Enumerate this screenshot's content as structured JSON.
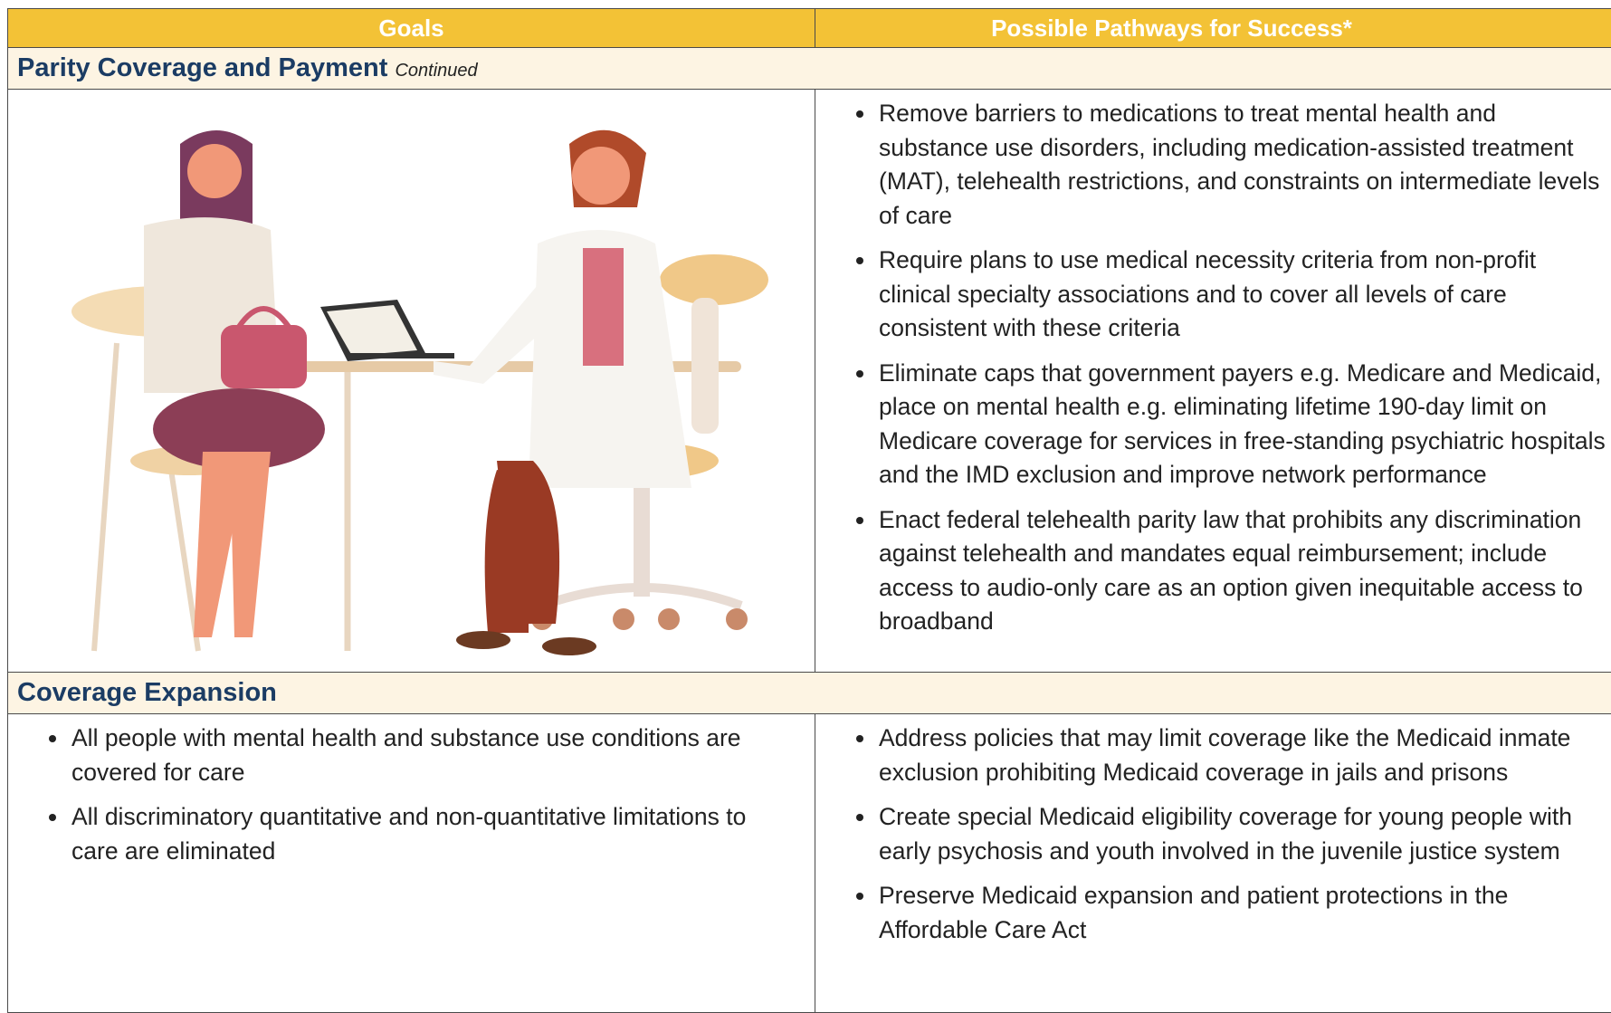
{
  "table": {
    "headers": [
      "Goals",
      "Possible Pathways for Success*"
    ],
    "sections": [
      {
        "title": "Parity Coverage and Payment",
        "note": "Continued",
        "goals": [],
        "pathways": [
          "Remove barriers to medications to treat mental health and substance use disorders, including medication-assisted treatment (MAT), telehealth restrictions, and constraints on intermediate levels of care",
          "Require plans to use medical necessity criteria from non-profit clinical specialty associations and to cover all levels of care consistent with these criteria",
          "Eliminate caps that government payers e.g. Medicare and Medicaid, place on mental health e.g. eliminating lifetime 190-day limit on Medicare coverage for services in free-standing psychiatric hospitals and the IMD exclusion and improve network performance",
          "Enact federal telehealth parity law that prohibits any discrimination against telehealth and mandates equal reimbursement; include access to audio-only care as an option given inequitable access to broadband"
        ]
      },
      {
        "title": "Coverage Expansion",
        "goals": [
          "All people with mental health and substance use conditions are covered for care",
          "All discriminatory quantitative and non-quantitative limitations to care are eliminated"
        ],
        "pathways": [
          "Address policies that may limit coverage like the Medicaid inmate exclusion prohibiting Medicaid coverage in jails and prisons",
          "Create special Medicaid eligibility coverage for young people with early psychosis and youth involved in the juvenile justice system",
          "Preserve Medicaid expansion and patient protections in the Affordable Care Act"
        ]
      }
    ]
  }
}
